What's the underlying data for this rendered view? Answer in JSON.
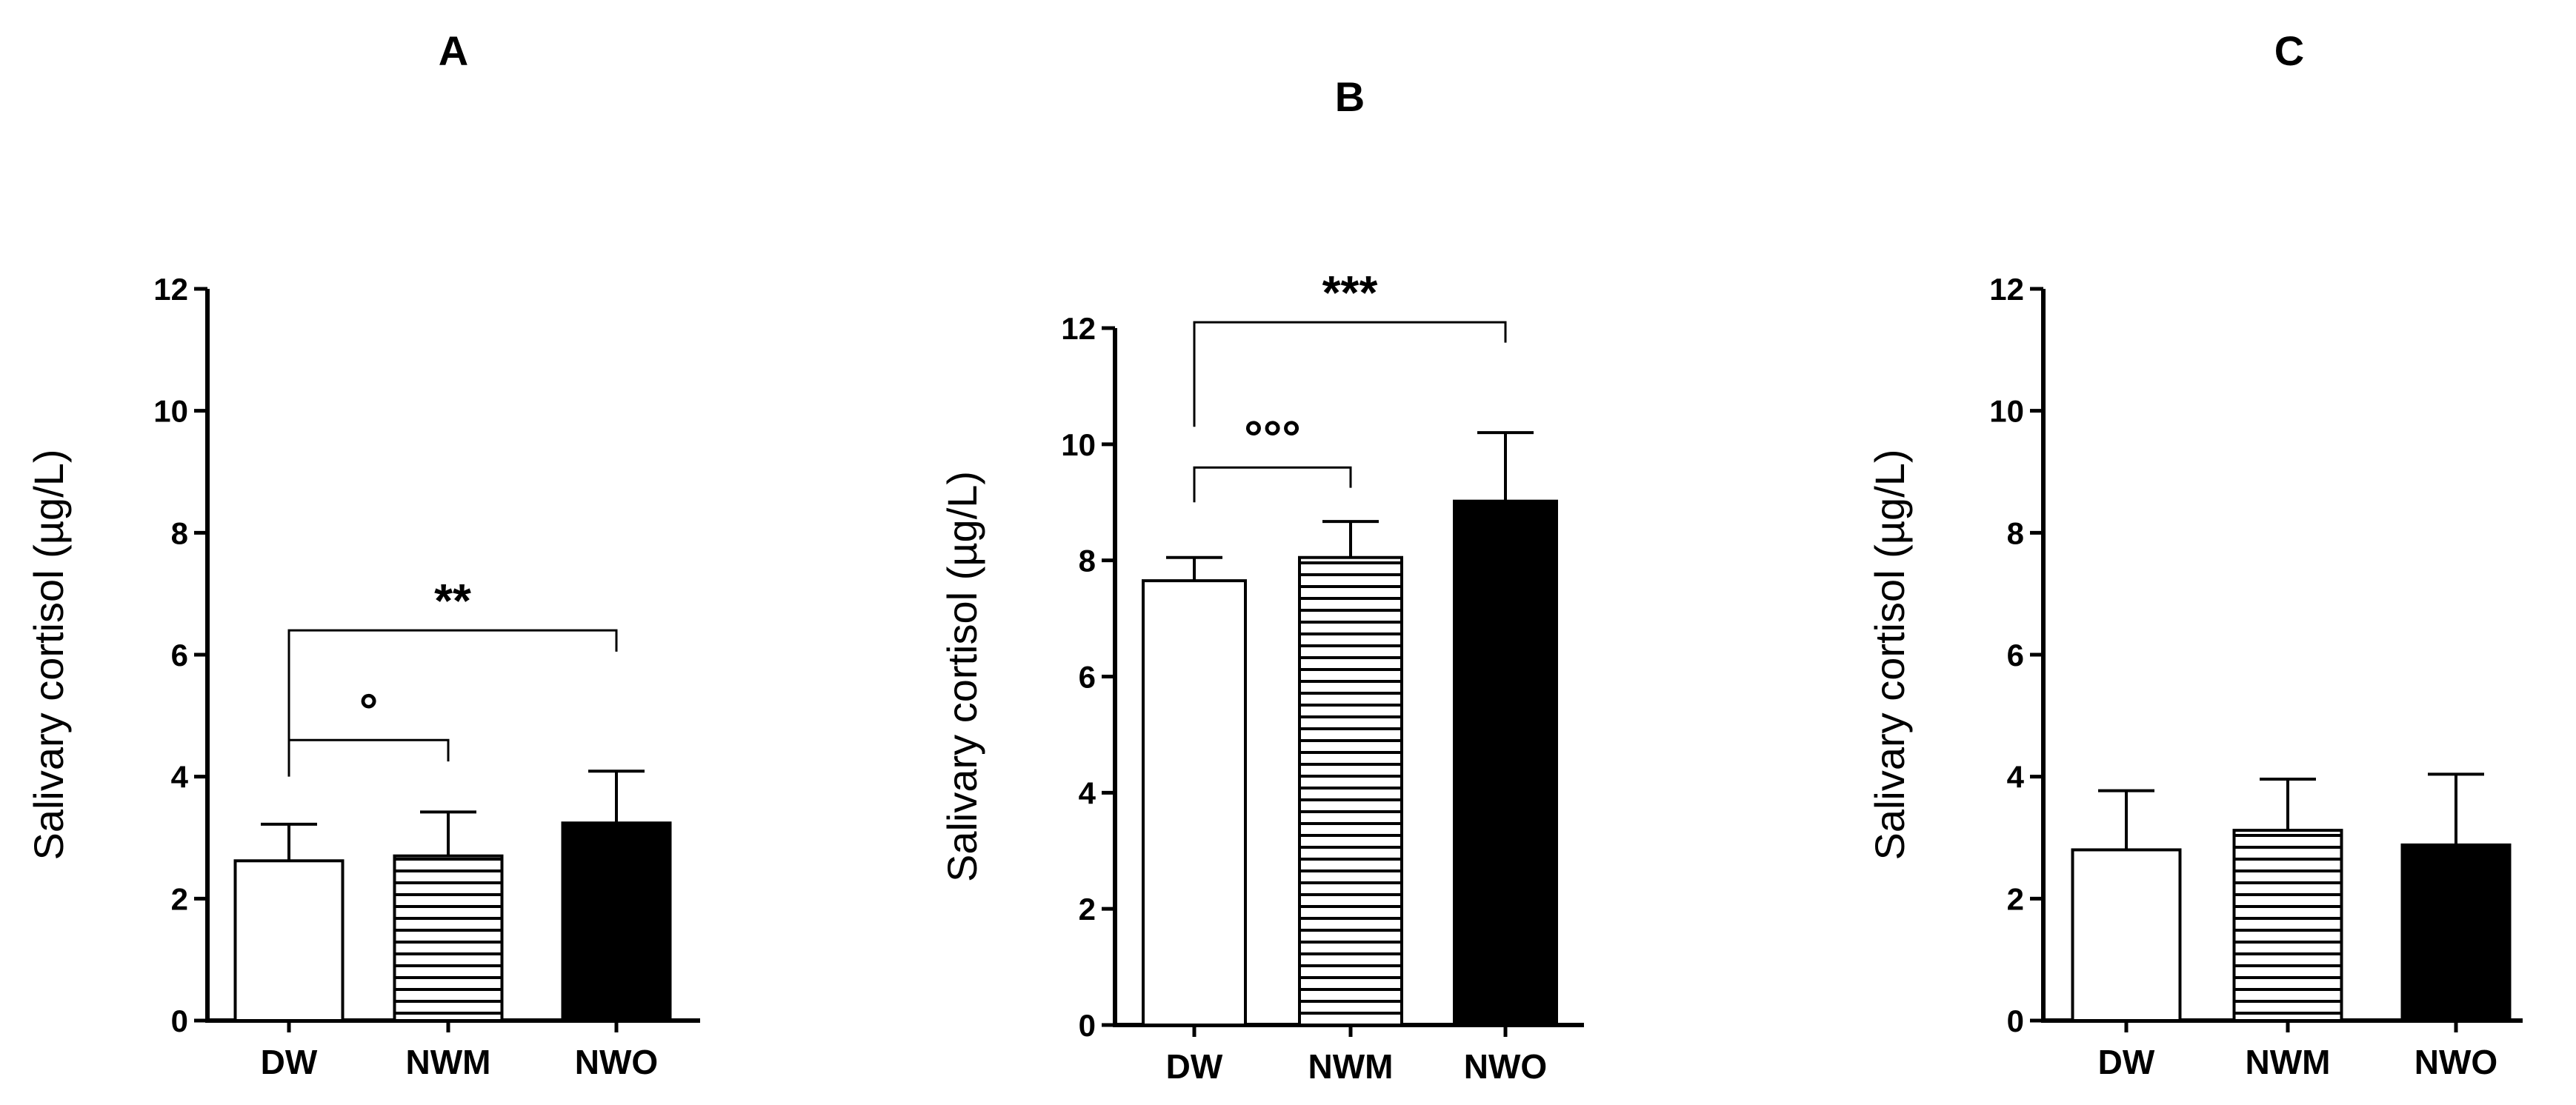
{
  "chart_data": [
    {
      "type": "bar",
      "title": "A",
      "ylabel": "Salivary cortisol (µg/L)",
      "categories": [
        "DW",
        "NWM",
        "NWO"
      ],
      "values": [
        2.62,
        2.7,
        3.24
      ],
      "errors": [
        0.6,
        0.72,
        0.85
      ],
      "bar_styles": [
        "white",
        "horizontal-lines",
        "black"
      ],
      "ylim": [
        0,
        12
      ],
      "yticks": [
        "0",
        "2",
        "4",
        "6",
        "8",
        "10",
        "12"
      ],
      "annotations": [
        {
          "from": 0,
          "to": 1,
          "label": "°",
          "y": 4.6
        },
        {
          "from": 0,
          "to": 2,
          "label": "**",
          "y": 6.4
        }
      ]
    },
    {
      "type": "bar",
      "title": "B",
      "ylabel": "Salivary cortisol (µg/L)",
      "categories": [
        "DW",
        "NWM",
        "NWO"
      ],
      "values": [
        7.65,
        8.05,
        9.02
      ],
      "errors": [
        0.4,
        0.62,
        1.18
      ],
      "bar_styles": [
        "white",
        "horizontal-lines",
        "black"
      ],
      "ylim": [
        0,
        12
      ],
      "yticks": [
        "0",
        "2",
        "4",
        "6",
        "8",
        "10",
        "12"
      ],
      "annotations": [
        {
          "from": 0,
          "to": 1,
          "label": "°°°",
          "y": 9.6
        },
        {
          "from": 0,
          "to": 2,
          "label": "***",
          "y": 12.1
        }
      ]
    },
    {
      "type": "bar",
      "title": "C",
      "ylabel": "Salivary cortisol (µg/L)",
      "categories": [
        "DW",
        "NWM",
        "NWO"
      ],
      "values": [
        2.8,
        3.12,
        2.88
      ],
      "errors": [
        0.97,
        0.84,
        1.16
      ],
      "bar_styles": [
        "white",
        "horizontal-lines",
        "black"
      ],
      "ylim": [
        0,
        12
      ],
      "yticks": [
        "0",
        "2",
        "4",
        "6",
        "8",
        "10",
        "12"
      ],
      "annotations": []
    }
  ]
}
